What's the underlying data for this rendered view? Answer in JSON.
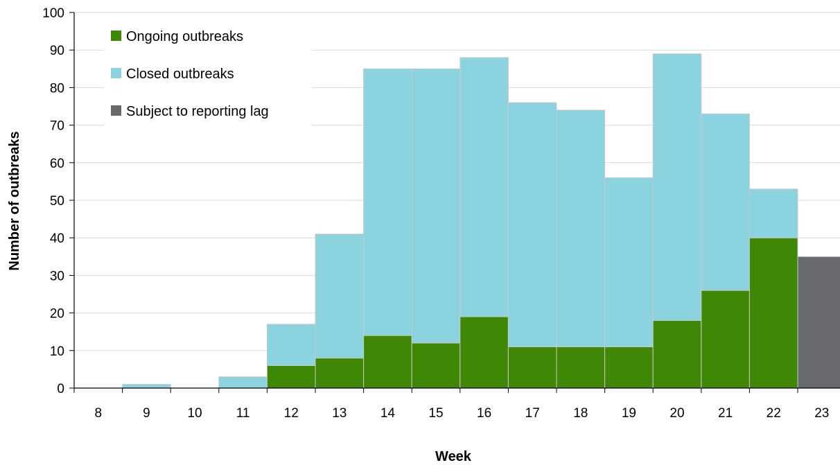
{
  "chart_data": {
    "type": "bar",
    "stacked": true,
    "xlabel": "Week",
    "ylabel": "Number of outbreaks",
    "ylim": [
      0,
      100
    ],
    "yticks": [
      0,
      10,
      20,
      30,
      40,
      50,
      60,
      70,
      80,
      90,
      100
    ],
    "categories": [
      "8",
      "9",
      "10",
      "11",
      "12",
      "13",
      "14",
      "15",
      "16",
      "17",
      "18",
      "19",
      "20",
      "21",
      "22",
      "23"
    ],
    "series": [
      {
        "name": "Ongoing outbreaks",
        "color": "#3f8805",
        "values": [
          0,
          0,
          0,
          0,
          6,
          8,
          14,
          12,
          19,
          11,
          11,
          11,
          18,
          26,
          40,
          0
        ]
      },
      {
        "name": "Closed outbreaks",
        "color": "#8bd3df",
        "values": [
          0,
          1,
          0,
          3,
          11,
          33,
          71,
          73,
          69,
          65,
          63,
          45,
          71,
          47,
          13,
          0
        ]
      },
      {
        "name": "Subject to reporting lag",
        "color": "#696a6d",
        "values": [
          0,
          0,
          0,
          0,
          0,
          0,
          0,
          0,
          0,
          0,
          0,
          0,
          0,
          0,
          0,
          35
        ]
      }
    ],
    "grid": true,
    "legend_position": "top-left"
  }
}
